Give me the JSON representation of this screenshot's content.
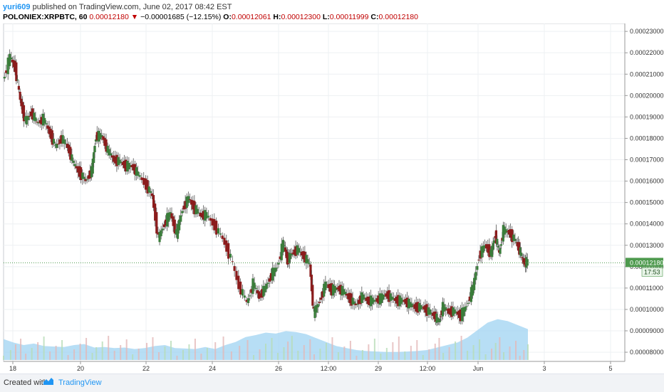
{
  "header": {
    "author": "yuri609",
    "published_text": " published on TradingView.com, June 02, 2017 08:42 EST",
    "symbol": "POLONIEX:XRPBTC, 60",
    "price": "0.00012180",
    "change_arrow": "▼",
    "change": "−0.00001685 (−12.15%)",
    "o_label": "O:",
    "o": "0.00012061",
    "h_label": "H:",
    "h": "0.00012300",
    "l_label": "L:",
    "l": "0.00011999",
    "c_label": "C:",
    "c": "0.00012180"
  },
  "footer": {
    "created_with": "Created with",
    "brand": "TradingView"
  },
  "colors": {
    "up": "#3a7d3a",
    "down": "#8b1c1c",
    "volume_area": "#9fd3f2",
    "last_price_badge": "#4e9a4e",
    "accent": "#2196f3"
  },
  "chart_data": {
    "type": "candlestick",
    "symbol": "POLONIEX:XRPBTC",
    "interval": "60",
    "x_ticks": [
      "18",
      "20",
      "22",
      "24",
      "26",
      "12:00",
      "29",
      "12:00",
      "Jun",
      "3",
      "5"
    ],
    "y_ticks": [
      "0.00023000",
      "0.00022000",
      "0.00021000",
      "0.00020000",
      "0.00019000",
      "0.00018000",
      "0.00017000",
      "0.00016000",
      "0.00015000",
      "0.00014000",
      "0.00013000",
      "0.00012000",
      "0.00011000",
      "0.00010000",
      "0.00009000",
      "0.00008000"
    ],
    "ylim": [
      7.57e-05,
      0.0002337
    ],
    "last_price": "0.00012180",
    "countdown": "17:53",
    "grid": true,
    "price_path": [
      [
        0,
        0.000207
      ],
      [
        0.7,
        0.000218
      ],
      [
        1.2,
        0.000213
      ],
      [
        1.7,
        0.000198
      ],
      [
        2.2,
        0.000188
      ],
      [
        2.8,
        0.000192
      ],
      [
        3.4,
        0.000187
      ],
      [
        4.0,
        0.000189
      ],
      [
        4.6,
        0.000183
      ],
      [
        5.2,
        0.000176
      ],
      [
        5.8,
        0.00018
      ],
      [
        6.4,
        0.000176
      ],
      [
        7.0,
        0.000168
      ],
      [
        7.6,
        0.000164
      ],
      [
        8.2,
        0.00016
      ],
      [
        8.8,
        0.000165
      ],
      [
        9.2,
        0.000181
      ],
      [
        9.8,
        0.000181
      ],
      [
        10.4,
        0.000174
      ],
      [
        11.0,
        0.00017
      ],
      [
        11.6,
        0.000169
      ],
      [
        12.2,
        0.000167
      ],
      [
        12.8,
        0.000167
      ],
      [
        13.4,
        0.000163
      ],
      [
        14.2,
        0.000158
      ],
      [
        14.8,
        0.000153
      ],
      [
        15.4,
        0.000133
      ],
      [
        16.0,
        0.00014
      ],
      [
        16.6,
        0.000145
      ],
      [
        17.2,
        0.000135
      ],
      [
        17.8,
        0.000147
      ],
      [
        18.4,
        0.000152
      ],
      [
        19.0,
        0.000147
      ],
      [
        19.6,
        0.000144
      ],
      [
        20.2,
        0.000144
      ],
      [
        21.0,
        0.000139
      ],
      [
        21.8,
        0.000133
      ],
      [
        22.6,
        0.000124
      ],
      [
        23.4,
        0.000111
      ],
      [
        24.2,
        0.000103
      ],
      [
        24.8,
        0.000112
      ],
      [
        25.4,
        0.000106
      ],
      [
        26.0,
        0.00011
      ],
      [
        26.6,
        0.000116
      ],
      [
        27.2,
        0.00012
      ],
      [
        27.8,
        0.000131
      ],
      [
        28.2,
        0.000123
      ],
      [
        28.6,
        0.000126
      ],
      [
        29.2,
        0.000128
      ],
      [
        29.8,
        0.000125
      ],
      [
        30.4,
        0.000121
      ],
      [
        30.8,
        9.8e-05
      ],
      [
        31.4,
        0.000104
      ],
      [
        32.0,
        0.000112
      ],
      [
        32.6,
        0.000109
      ],
      [
        33.2,
        0.00011
      ],
      [
        33.8,
        0.000108
      ],
      [
        34.4,
        0.000105
      ],
      [
        35.0,
        0.000102
      ],
      [
        35.6,
        0.000106
      ],
      [
        36.2,
        0.000104
      ],
      [
        36.8,
        0.000104
      ],
      [
        37.4,
        0.000105
      ],
      [
        38.0,
        0.000107
      ],
      [
        38.6,
        0.000105
      ],
      [
        39.2,
        0.000104
      ],
      [
        39.8,
        0.000104
      ],
      [
        40.4,
        0.000102
      ],
      [
        41.0,
        0.000101
      ],
      [
        41.6,
        0.000101
      ],
      [
        42.2,
        9.9e-05
      ],
      [
        42.8,
        9.7e-05
      ],
      [
        43.2,
        9.4e-05
      ],
      [
        43.6,
        0.000101
      ],
      [
        44.2,
        9.9e-05
      ],
      [
        44.8,
        9.9e-05
      ],
      [
        45.4,
        9.7e-05
      ],
      [
        46.0,
        0.000102
      ],
      [
        46.6,
        0.00011
      ],
      [
        47.2,
        0.000125
      ],
      [
        47.8,
        0.00013
      ],
      [
        48.4,
        0.000126
      ],
      [
        48.8,
        0.000135
      ],
      [
        49.2,
        0.000126
      ],
      [
        49.6,
        0.000137
      ],
      [
        50.2,
        0.000136
      ],
      [
        50.8,
        0.000132
      ],
      [
        51.2,
        0.000128
      ],
      [
        51.6,
        0.000122
      ],
      [
        52.0,
        0.000122
      ]
    ],
    "volume_area": [
      [
        0,
        0.42
      ],
      [
        1,
        0.35
      ],
      [
        2,
        0.3
      ],
      [
        3,
        0.33
      ],
      [
        4,
        0.28
      ],
      [
        5,
        0.27
      ],
      [
        6,
        0.26
      ],
      [
        7,
        0.3
      ],
      [
        8,
        0.32
      ],
      [
        9,
        0.25
      ],
      [
        10,
        0.26
      ],
      [
        11,
        0.24
      ],
      [
        12,
        0.25
      ],
      [
        13,
        0.22
      ],
      [
        14,
        0.24
      ],
      [
        15,
        0.28
      ],
      [
        16,
        0.3
      ],
      [
        17,
        0.24
      ],
      [
        18,
        0.23
      ],
      [
        19,
        0.22
      ],
      [
        20,
        0.26
      ],
      [
        21,
        0.22
      ],
      [
        22,
        0.3
      ],
      [
        23,
        0.36
      ],
      [
        24,
        0.46
      ],
      [
        25,
        0.5
      ],
      [
        26,
        0.55
      ],
      [
        27,
        0.53
      ],
      [
        28,
        0.58
      ],
      [
        29,
        0.56
      ],
      [
        30,
        0.52
      ],
      [
        31,
        0.44
      ],
      [
        32,
        0.36
      ],
      [
        33,
        0.28
      ],
      [
        34,
        0.24
      ],
      [
        35,
        0.2
      ],
      [
        36,
        0.18
      ],
      [
        37,
        0.17
      ],
      [
        38,
        0.16
      ],
      [
        39,
        0.16
      ],
      [
        40,
        0.17
      ],
      [
        41,
        0.18
      ],
      [
        42,
        0.2
      ],
      [
        43,
        0.25
      ],
      [
        44,
        0.3
      ],
      [
        45,
        0.35
      ],
      [
        46,
        0.45
      ],
      [
        47,
        0.6
      ],
      [
        48,
        0.75
      ],
      [
        49,
        0.82
      ],
      [
        50,
        0.78
      ],
      [
        51,
        0.7
      ],
      [
        52,
        0.62
      ]
    ]
  }
}
